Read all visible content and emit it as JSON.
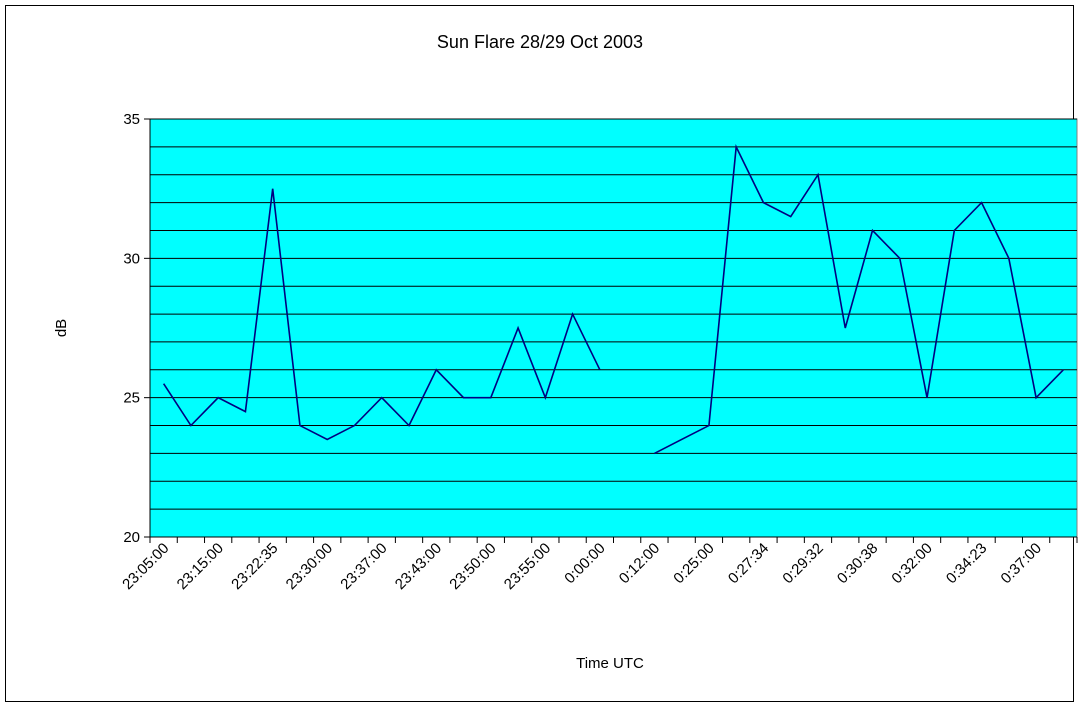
{
  "chart_data": {
    "type": "line",
    "title": "Sun Flare 28/29 Oct 2003",
    "x_label": "Time UTC",
    "y_label": "dB",
    "categories": [
      "23:05:00",
      null,
      "23:15:00",
      null,
      "23:22:35",
      null,
      "23:30:00",
      null,
      "23:37:00",
      null,
      "23:43:00",
      null,
      "23:50:00",
      null,
      "23:55:00",
      null,
      "0:00:00",
      null,
      "0:12:00",
      null,
      "0:25:00",
      null,
      "0:27:34",
      null,
      "0:29:32",
      null,
      "0:30:38",
      null,
      "0:32:00",
      null,
      "0:34:23",
      null,
      "0:37:00",
      null
    ],
    "series": [
      {
        "color": "#000080",
        "values": [
          25.5,
          24,
          25,
          24.5,
          32.5,
          24,
          23.5,
          24,
          25,
          24,
          26,
          25,
          25,
          27.5,
          25,
          28,
          26,
          null,
          23,
          23.5,
          24,
          34,
          32,
          31.5,
          33,
          27.5,
          31,
          30,
          25,
          31,
          32,
          30,
          25,
          26
        ]
      }
    ],
    "ylim": [
      20,
      35
    ],
    "yticks": [
      20,
      25,
      30,
      35
    ],
    "minor_yticks": [
      21,
      22,
      23,
      24,
      26,
      27,
      28,
      29,
      31,
      32,
      33,
      34
    ],
    "grid": true,
    "plot_background": "#00ffff"
  }
}
